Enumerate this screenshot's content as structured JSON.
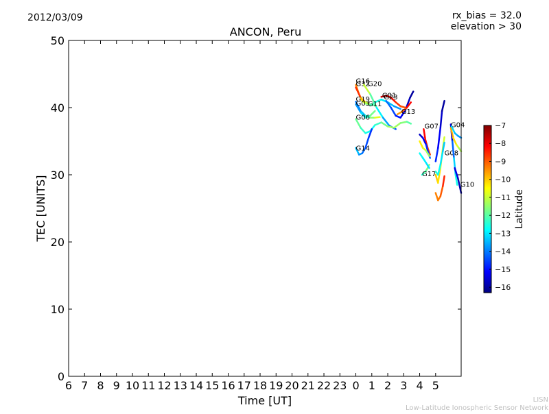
{
  "date": "2012/03/09",
  "bias_text": "rx_bias = 32.0",
  "elevation_text": "elevation > 30",
  "footer": {
    "line1": "LISN",
    "line2": "Low-Latitude Ionospheric Sensor Network"
  },
  "chart_data": {
    "type": "line",
    "title": "ANCON, Peru",
    "xlabel": "Time [UT]",
    "ylabel": "TEC [UNITS]",
    "xlim": [
      "06:00",
      "06:00 (+1 day)"
    ],
    "ylim": [
      0,
      50
    ],
    "y_ticks": [
      0,
      10,
      20,
      30,
      40,
      50
    ],
    "x_tick_labels": [
      "6",
      "7",
      "8",
      "9",
      "10",
      "11",
      "12",
      "13",
      "14",
      "15",
      "16",
      "17",
      "18",
      "19",
      "20",
      "21",
      "22",
      "23",
      "0",
      "1",
      "2",
      "3",
      "4",
      "5"
    ],
    "grid": false,
    "colorbar": {
      "label": "Latitude",
      "range": [
        -16.3,
        -7
      ],
      "ticks": [
        -7,
        -8,
        -9,
        -10,
        -11,
        -12,
        -13,
        -14,
        -15,
        -16
      ],
      "colors": [
        "#00007f",
        "#0000ff",
        "#007fff",
        "#00ffff",
        "#7fff7f",
        "#ffff00",
        "#ff7f00",
        "#ff0000",
        "#7f0000"
      ]
    },
    "series": [
      {
        "name": "G16",
        "label_at": [
          0.0,
          43.6
        ],
        "points": [
          [
            0.0,
            43.4,
            -9.0
          ],
          [
            0.2,
            42.0,
            -9.8
          ],
          [
            0.4,
            41.0,
            -10.5
          ],
          [
            0.6,
            40.6,
            -11.3
          ],
          [
            0.8,
            40.5,
            -12.0
          ]
        ]
      },
      {
        "name": "G32",
        "label_at": [
          0.0,
          43.2
        ],
        "points": [
          [
            0.0,
            43.0,
            -8.0
          ],
          [
            0.3,
            41.5,
            -9.2
          ],
          [
            0.6,
            40.8,
            -10.4
          ],
          [
            0.9,
            40.5,
            -11.6
          ],
          [
            1.2,
            40.3,
            -12.6
          ]
        ]
      },
      {
        "name": "G20",
        "label_at": [
          0.75,
          43.2
        ],
        "points": [
          [
            0.5,
            43.4,
            -10.5
          ],
          [
            0.9,
            42.0,
            -11.5
          ],
          [
            1.3,
            40.0,
            -12.5
          ],
          [
            1.7,
            38.5,
            -13.3
          ],
          [
            2.1,
            37.3,
            -14.0
          ],
          [
            2.5,
            36.8,
            -14.6
          ]
        ]
      },
      {
        "name": "G19",
        "label_at": [
          0.0,
          40.9
        ],
        "points": [
          [
            0.0,
            40.9,
            -14.2
          ],
          [
            0.3,
            39.5,
            -13.8
          ],
          [
            0.6,
            38.8,
            -13.0
          ],
          [
            0.9,
            38.5,
            -12.0
          ],
          [
            1.2,
            38.5,
            -11.0
          ],
          [
            1.5,
            38.6,
            -10.5
          ]
        ]
      },
      {
        "name": "G03",
        "label_at": [
          0.0,
          40.3
        ],
        "points": [
          [
            0.0,
            40.5,
            -14.0
          ],
          [
            0.3,
            39.3,
            -13.5
          ],
          [
            0.6,
            38.5,
            -12.8
          ],
          [
            0.9,
            38.8,
            -12.0
          ],
          [
            1.2,
            39.5,
            -11.5
          ]
        ]
      },
      {
        "name": "G11",
        "label_at": [
          0.75,
          40.2
        ],
        "points": [
          [
            0.9,
            40.3,
            -12.0
          ],
          [
            1.2,
            40.8,
            -12.3
          ],
          [
            1.6,
            41.2,
            -12.8
          ],
          [
            2.0,
            40.8,
            -13.2
          ],
          [
            2.4,
            40.2,
            -13.6
          ],
          [
            2.8,
            39.8,
            -13.9
          ]
        ]
      },
      {
        "name": "G01",
        "label_at": [
          1.65,
          41.5
        ],
        "points": [
          [
            1.6,
            41.6,
            -7.6
          ],
          [
            1.9,
            41.8,
            -7.8
          ],
          [
            2.2,
            41.5,
            -8.1
          ],
          [
            2.5,
            40.8,
            -8.5
          ],
          [
            2.8,
            40.2,
            -8.8
          ],
          [
            3.1,
            40.0,
            -9.0
          ]
        ]
      },
      {
        "name": "G23",
        "label_at": [
          1.75,
          41.2
        ],
        "points": [
          [
            1.9,
            41.0,
            -14.0
          ],
          [
            2.2,
            40.0,
            -14.3
          ],
          [
            2.5,
            38.8,
            -14.7
          ],
          [
            2.8,
            38.5,
            -15.1
          ],
          [
            3.1,
            39.6,
            -15.5
          ],
          [
            3.4,
            41.5,
            -15.9
          ],
          [
            3.6,
            42.4,
            -16.1
          ]
        ]
      },
      {
        "name": "G13",
        "label_at": [
          2.85,
          39.1
        ],
        "points": [
          [
            2.6,
            39.0,
            -9.8
          ],
          [
            2.9,
            39.4,
            -9.3
          ],
          [
            3.2,
            40.0,
            -8.6
          ],
          [
            3.45,
            40.8,
            -7.8
          ]
        ]
      },
      {
        "name": "G06",
        "label_at": [
          0.0,
          38.2
        ],
        "points": [
          [
            0.0,
            38.3,
            -11.6
          ],
          [
            0.3,
            37.0,
            -12.1
          ],
          [
            0.6,
            36.2,
            -12.5
          ],
          [
            0.9,
            36.5,
            -12.8
          ],
          [
            1.2,
            37.4,
            -12.6
          ],
          [
            1.6,
            37.8,
            -12.0
          ],
          [
            2.0,
            37.2,
            -11.5
          ],
          [
            2.4,
            37.0,
            -11.3
          ],
          [
            2.8,
            37.7,
            -11.4
          ],
          [
            3.2,
            37.9,
            -11.8
          ],
          [
            3.45,
            37.6,
            -12.2
          ]
        ]
      },
      {
        "name": "G14",
        "label_at": [
          0.0,
          33.6
        ],
        "points": [
          [
            0.0,
            34.0,
            -13.2
          ],
          [
            0.2,
            33.0,
            -13.6
          ],
          [
            0.4,
            33.2,
            -14.0
          ],
          [
            0.6,
            34.0,
            -14.3
          ],
          [
            0.8,
            35.5,
            -14.6
          ],
          [
            1.0,
            36.8,
            -14.8
          ]
        ]
      },
      {
        "name": "G07",
        "label_at": [
          4.3,
          36.9
        ],
        "points": [
          [
            4.25,
            36.8,
            -8.0
          ],
          [
            4.35,
            35.3,
            -8.3
          ],
          [
            4.5,
            34.0,
            -8.6
          ],
          [
            4.65,
            33.0,
            -8.9
          ]
        ]
      },
      {
        "name": "G17",
        "label_at": [
          4.15,
          29.8
        ],
        "points": [
          [
            4.15,
            30.0,
            -12.6
          ],
          [
            4.3,
            30.3,
            -12.2
          ],
          [
            4.45,
            30.8,
            -11.8
          ],
          [
            4.6,
            31.5,
            -11.4
          ]
        ]
      },
      {
        "name": "G08",
        "label_at": [
          5.55,
          32.9
        ],
        "points": [
          [
            5.0,
            32.0,
            -14.6
          ],
          [
            5.15,
            34.0,
            -15.0
          ],
          [
            5.3,
            37.0,
            -15.4
          ],
          [
            5.4,
            39.5,
            -15.8
          ],
          [
            5.55,
            41.0,
            -16.2
          ]
        ]
      },
      {
        "name": "G04",
        "label_at": [
          5.95,
          37.1
        ],
        "points": [
          [
            5.95,
            37.5,
            -16.0
          ],
          [
            6.05,
            35.0,
            -14.8
          ],
          [
            6.15,
            32.5,
            -13.6
          ],
          [
            6.25,
            30.0,
            -12.8
          ],
          [
            6.35,
            28.5,
            -12.5
          ]
        ]
      },
      {
        "name": "G10",
        "label_at": [
          6.55,
          28.2
        ],
        "points": [
          [
            6.2,
            31.0,
            -15.2
          ],
          [
            6.4,
            29.5,
            -15.6
          ],
          [
            6.6,
            27.3,
            -16.1
          ]
        ]
      },
      {
        "points": [
          [
            4.0,
            36.0,
            -15.8
          ],
          [
            4.2,
            35.5,
            -15.5
          ],
          [
            4.4,
            34.5,
            -15.0
          ],
          [
            4.55,
            33.2,
            -14.5
          ],
          [
            4.65,
            32.5,
            -14.0
          ]
        ]
      },
      {
        "points": [
          [
            4.0,
            35.0,
            -10.2
          ],
          [
            4.2,
            34.0,
            -10.5
          ],
          [
            4.4,
            33.6,
            -11.0
          ],
          [
            4.6,
            32.8,
            -11.8
          ]
        ]
      },
      {
        "points": [
          [
            4.0,
            33.2,
            -12.7
          ],
          [
            4.2,
            32.5,
            -12.8
          ],
          [
            4.4,
            31.8,
            -13.0
          ],
          [
            4.6,
            31.0,
            -13.1
          ]
        ]
      },
      {
        "points": [
          [
            5.0,
            27.3,
            -9.3
          ],
          [
            5.15,
            26.2,
            -9.4
          ],
          [
            5.3,
            26.8,
            -9.2
          ],
          [
            5.45,
            28.3,
            -8.8
          ],
          [
            5.55,
            29.8,
            -8.2
          ]
        ]
      },
      {
        "points": [
          [
            5.0,
            30.0,
            -9.9
          ],
          [
            5.15,
            28.8,
            -10.1
          ],
          [
            5.3,
            31.0,
            -10.4
          ],
          [
            5.45,
            34.0,
            -10.8
          ],
          [
            5.55,
            35.6,
            -11.0
          ]
        ]
      },
      {
        "points": [
          [
            5.0,
            30.5,
            -12.4
          ],
          [
            5.15,
            30.0,
            -12.6
          ],
          [
            5.3,
            31.5,
            -12.9
          ],
          [
            5.45,
            33.5,
            -13.2
          ],
          [
            5.55,
            34.8,
            -13.4
          ]
        ]
      },
      {
        "points": [
          [
            5.95,
            37.0,
            -9.6
          ],
          [
            6.1,
            35.5,
            -9.9
          ],
          [
            6.3,
            34.5,
            -10.5
          ],
          [
            6.45,
            34.0,
            -11.0
          ],
          [
            6.6,
            33.5,
            -11.4
          ]
        ]
      },
      {
        "points": [
          [
            6.0,
            37.2,
            -13.0
          ],
          [
            6.2,
            36.2,
            -13.3
          ],
          [
            6.4,
            35.8,
            -13.6
          ],
          [
            6.6,
            35.5,
            -13.9
          ]
        ]
      }
    ]
  }
}
